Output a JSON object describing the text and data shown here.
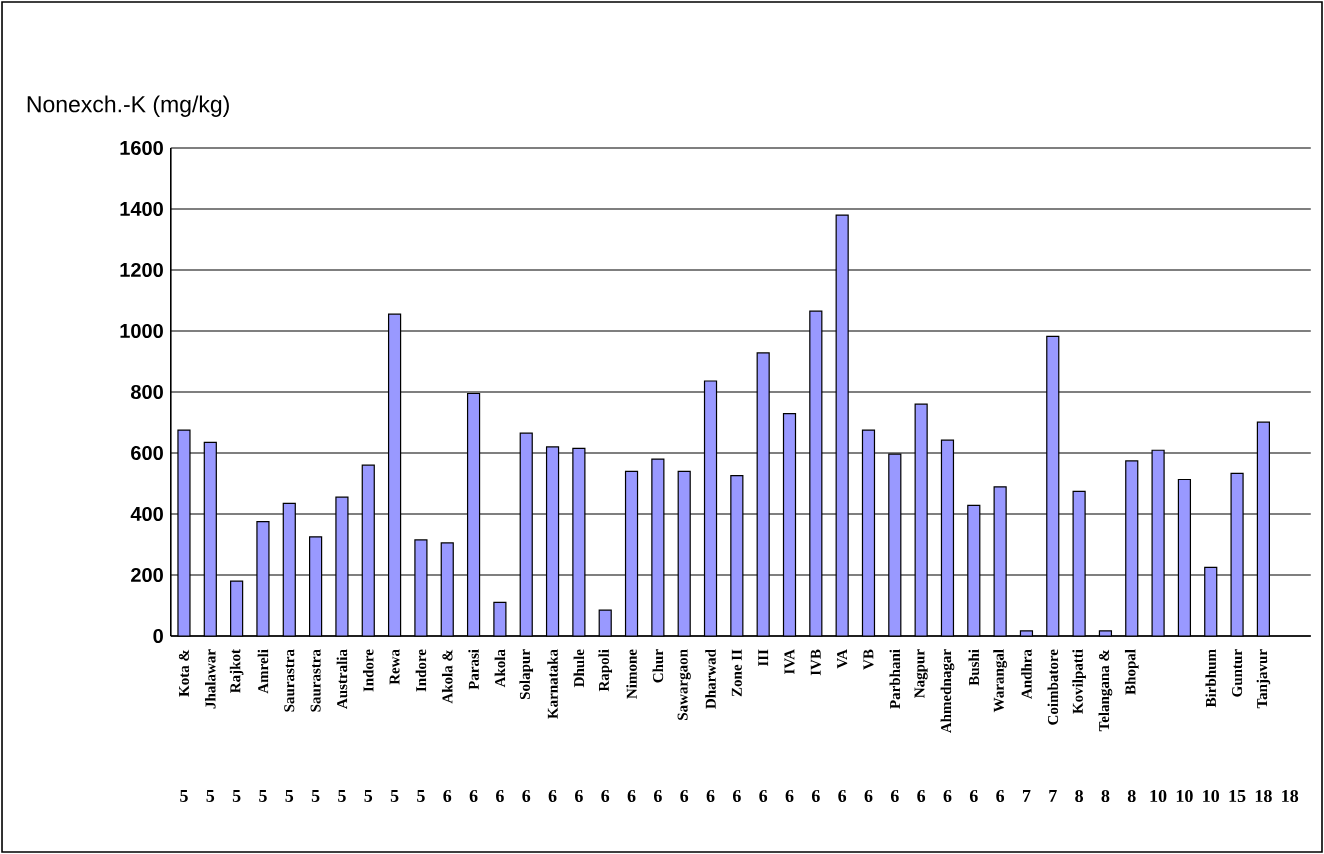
{
  "chart_data": {
    "type": "bar",
    "ylabel": "Nonexch.-K (mg/kg)",
    "categories": [
      "Kota &",
      "Jhalawar",
      "Rajkot",
      "Amreli",
      "Saurastra",
      "Saurastra",
      "Australia",
      "Indore",
      "Rewa",
      "Indore",
      "Akola &",
      "Parasi",
      "Akola",
      "Solapur",
      "Karnataka",
      "Dhule",
      "Rapoli",
      "Nimone",
      "Chur",
      "Sawargaon",
      "Dharwad",
      "Zone II",
      "III",
      "IVA",
      "IVB",
      "VA",
      "VB",
      "Parbhani",
      "Nagpur",
      "Ahmednagar",
      "Bushi",
      "Warangal",
      "Andhra",
      "Coimbatore",
      "Kovilpatti",
      "Telangana &",
      "Bhopal",
      null,
      null,
      "Birbhum",
      "Guntur",
      "Tanjavur",
      null
    ],
    "values": [
      675,
      635,
      180,
      375,
      435,
      325,
      455,
      560,
      1055,
      315,
      305,
      795,
      110,
      665,
      620,
      615,
      85,
      540,
      580,
      540,
      836,
      526,
      928,
      729,
      1065,
      1380,
      675,
      596,
      760,
      642,
      428,
      489,
      17,
      982,
      474,
      17,
      574,
      609,
      513,
      225,
      533,
      701,
      null
    ],
    "color": "#9999ff",
    "ylim": [
      0,
      1600
    ],
    "yticks": [
      0,
      200,
      400,
      600,
      800,
      1000,
      1200,
      1400,
      1600
    ],
    "grid": "y",
    "annotations": [
      "5",
      "5",
      "5",
      "5",
      "5",
      "5",
      "5",
      "5",
      "5",
      "5",
      "6",
      "6",
      "6",
      "6",
      "6",
      "6",
      "6",
      "6",
      "6",
      "6",
      "6",
      "6",
      "6",
      "6",
      "6",
      "6",
      "6",
      "6",
      "6",
      "6",
      "6",
      "6",
      "7",
      "7",
      "8",
      "8",
      "8",
      "10",
      "10",
      "10",
      "15",
      "18",
      "18"
    ]
  }
}
